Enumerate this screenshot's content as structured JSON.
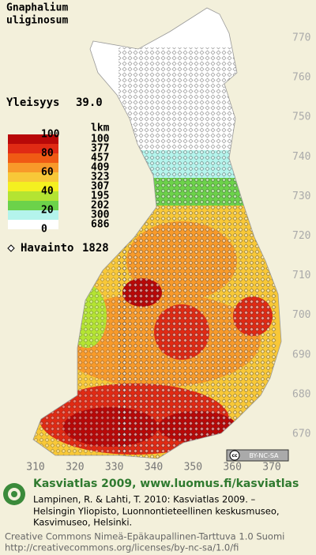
{
  "title": [
    "Gnaphalium",
    "uliginosum"
  ],
  "frequency": {
    "label": "Yleisyys",
    "value": "39.0"
  },
  "legend": {
    "scale_labels": [
      "100",
      "80",
      "60",
      "40",
      "20",
      "0"
    ],
    "count_header": "lkm",
    "counts": [
      "100",
      "377",
      "457",
      "409",
      "323",
      "307",
      "195",
      "202",
      "300",
      "686"
    ],
    "colors": [
      "#b80808",
      "#e02a14",
      "#f05a14",
      "#f89a2a",
      "#f8c838",
      "#f4f020",
      "#b4e432",
      "#6cd24a",
      "#b4f4ec",
      "#ffffff"
    ]
  },
  "observations": {
    "label": "Havainto",
    "count": "1828"
  },
  "map": {
    "northing_ticks": [
      770,
      760,
      750,
      740,
      730,
      720,
      710,
      700,
      690,
      680,
      670
    ],
    "easting_ticks": [
      310,
      320,
      330,
      340,
      350,
      360,
      370
    ]
  },
  "footer": {
    "heading": "Kasviatlas 2009, www.luomus.fi/kasviatlas",
    "citation": [
      "Lampinen, R. & Lahti, T. 2010: Kasviatlas 2009. –",
      "Helsingin Yliopisto, Luonnontieteellinen keskusmuseo,",
      "Kasvimuseo, Helsinki."
    ],
    "license": [
      "Creative Commons Nimeä-Epäkaupallinen-Tarttuva 1.0 Suomi",
      "http://creativecommons.org/licenses/by-nc-sa/1.0/fi"
    ],
    "badge": "BY-NC-SA"
  }
}
